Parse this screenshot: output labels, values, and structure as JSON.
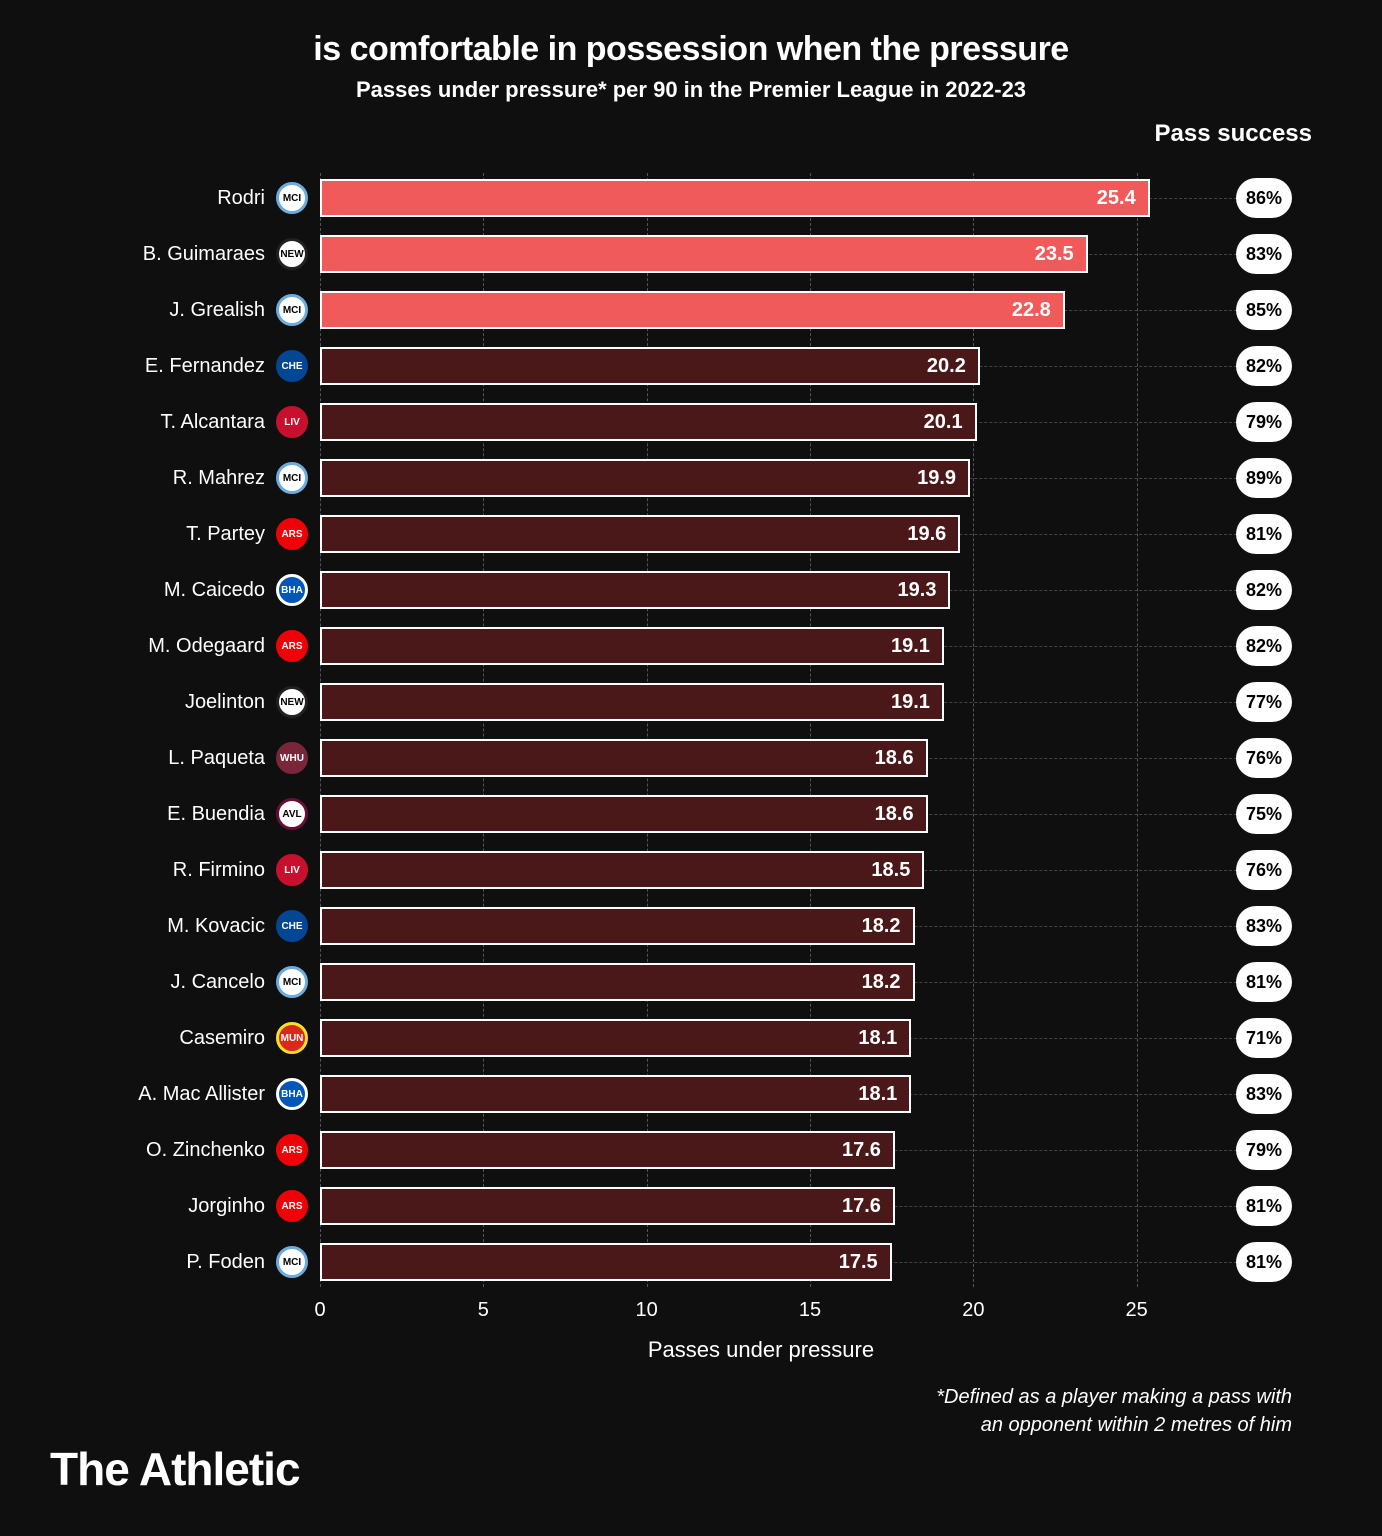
{
  "title": "is comfortable in possession when the pressure",
  "subtitle": "Passes under pressure* per 90 in the Premier League in 2022-23",
  "pass_success_header": "Pass success",
  "x_axis_label": "Passes under pressure",
  "footnote_line1": "*Defined as a player making a pass with",
  "footnote_line2": "an opponent within 2 metres of him",
  "brand": "The Athletic",
  "chart": {
    "type": "bar",
    "x_max": 27,
    "x_ticks": [
      0,
      5,
      10,
      15,
      20,
      25
    ],
    "bar_highlight_color": "#f05a5a",
    "bar_default_color": "#4a1818",
    "bar_border_color": "#ffffff",
    "grid_color": "#555555",
    "background_color": "#0f0f0f",
    "value_fontsize": 20,
    "label_fontsize": 20,
    "pill_bg": "#ffffff",
    "pill_fg": "#000000"
  },
  "teams": {
    "mancity": {
      "bg": "#ffffff",
      "ring": "#6cabdd",
      "label": "MCI"
    },
    "newcastle": {
      "bg": "#ffffff",
      "ring": "#241f20",
      "label": "NEW"
    },
    "chelsea": {
      "bg": "#034694",
      "ring": "#034694",
      "label": "CHE"
    },
    "liverpool": {
      "bg": "#c8102e",
      "ring": "#c8102e",
      "label": "LIV"
    },
    "arsenal": {
      "bg": "#ef0107",
      "ring": "#ef0107",
      "label": "ARS"
    },
    "brighton": {
      "bg": "#0057b8",
      "ring": "#ffffff",
      "label": "BHA"
    },
    "westham": {
      "bg": "#7a263a",
      "ring": "#7a263a",
      "label": "WHU"
    },
    "villa": {
      "bg": "#ffffff",
      "ring": "#670e36",
      "label": "AVL"
    },
    "manutd": {
      "bg": "#da291c",
      "ring": "#fbe122",
      "label": "MUN"
    }
  },
  "rows": [
    {
      "name": "Rodri",
      "team": "mancity",
      "value": 25.4,
      "pass_success": "86%",
      "highlight": true
    },
    {
      "name": "B. Guimaraes",
      "team": "newcastle",
      "value": 23.5,
      "pass_success": "83%",
      "highlight": true
    },
    {
      "name": "J. Grealish",
      "team": "mancity",
      "value": 22.8,
      "pass_success": "85%",
      "highlight": true
    },
    {
      "name": "E. Fernandez",
      "team": "chelsea",
      "value": 20.2,
      "pass_success": "82%",
      "highlight": false
    },
    {
      "name": "T. Alcantara",
      "team": "liverpool",
      "value": 20.1,
      "pass_success": "79%",
      "highlight": false
    },
    {
      "name": "R. Mahrez",
      "team": "mancity",
      "value": 19.9,
      "pass_success": "89%",
      "highlight": false
    },
    {
      "name": "T. Partey",
      "team": "arsenal",
      "value": 19.6,
      "pass_success": "81%",
      "highlight": false
    },
    {
      "name": "M. Caicedo",
      "team": "brighton",
      "value": 19.3,
      "pass_success": "82%",
      "highlight": false
    },
    {
      "name": "M. Odegaard",
      "team": "arsenal",
      "value": 19.1,
      "pass_success": "82%",
      "highlight": false
    },
    {
      "name": "Joelinton",
      "team": "newcastle",
      "value": 19.1,
      "pass_success": "77%",
      "highlight": false
    },
    {
      "name": "L. Paqueta",
      "team": "westham",
      "value": 18.6,
      "pass_success": "76%",
      "highlight": false
    },
    {
      "name": "E. Buendia",
      "team": "villa",
      "value": 18.6,
      "pass_success": "75%",
      "highlight": false
    },
    {
      "name": "R. Firmino",
      "team": "liverpool",
      "value": 18.5,
      "pass_success": "76%",
      "highlight": false
    },
    {
      "name": "M. Kovacic",
      "team": "chelsea",
      "value": 18.2,
      "pass_success": "83%",
      "highlight": false
    },
    {
      "name": "J. Cancelo",
      "team": "mancity",
      "value": 18.2,
      "pass_success": "81%",
      "highlight": false
    },
    {
      "name": "Casemiro",
      "team": "manutd",
      "value": 18.1,
      "pass_success": "71%",
      "highlight": false
    },
    {
      "name": "A. Mac Allister",
      "team": "brighton",
      "value": 18.1,
      "pass_success": "83%",
      "highlight": false
    },
    {
      "name": "O. Zinchenko",
      "team": "arsenal",
      "value": 17.6,
      "pass_success": "79%",
      "highlight": false
    },
    {
      "name": "Jorginho",
      "team": "arsenal",
      "value": 17.6,
      "pass_success": "81%",
      "highlight": false
    },
    {
      "name": "P. Foden",
      "team": "mancity",
      "value": 17.5,
      "pass_success": "81%",
      "highlight": false
    }
  ]
}
